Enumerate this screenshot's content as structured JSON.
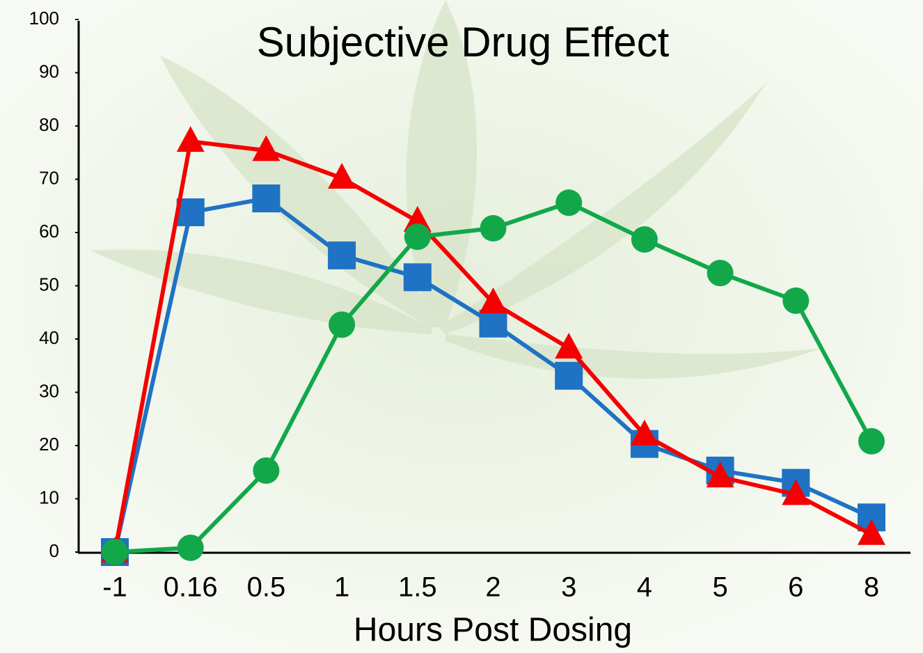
{
  "chart_data": {
    "type": "line",
    "title": "Subjective Drug Effect",
    "x_label": "Hours Post Dosing",
    "categories": [
      "-1",
      "0.16",
      "0.5",
      "1",
      "1.5",
      "2",
      "3",
      "4",
      "5",
      "6",
      "8"
    ],
    "series": [
      {
        "color": "#1f72c4",
        "marker": "square",
        "values": [
          0,
          63.8,
          66.4,
          55.7,
          51.6,
          42.9,
          33.1,
          20.3,
          15.3,
          13,
          6.5
        ]
      },
      {
        "color": "#f50000",
        "marker": "triangle",
        "values": [
          0,
          77.1,
          75.4,
          70.2,
          62.1,
          46.8,
          38.3,
          22,
          14.1,
          10.8,
          3.3
        ]
      },
      {
        "color": "#12a84a",
        "marker": "circle",
        "values": [
          0,
          0.8,
          15.3,
          42.7,
          59.2,
          60.8,
          65.6,
          58.7,
          52.4,
          47.2,
          20.8
        ]
      }
    ],
    "ylim": [
      0,
      100
    ],
    "yticks": [
      0,
      10,
      20,
      30,
      40,
      50,
      60,
      70,
      80,
      90,
      100
    ],
    "grid": false
  }
}
